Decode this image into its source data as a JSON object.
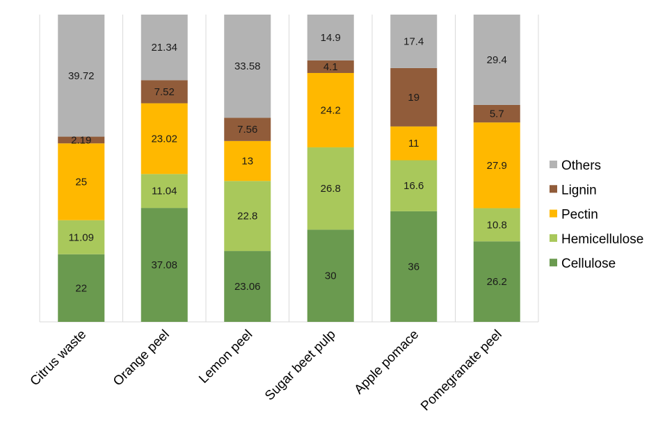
{
  "chart_data": {
    "type": "bar",
    "stacked": true,
    "title": "",
    "xlabel": "",
    "ylabel": "",
    "ylim": [
      0,
      100
    ],
    "grid": "vertical-separators",
    "legend_position": "right",
    "categories": [
      "Citrus waste",
      "Orange peel",
      "Lemon peel",
      "Sugar beet pulp",
      "Apple pomace",
      "Pomegranate peel"
    ],
    "series": [
      {
        "name": "Cellulose",
        "color": "#6a9a4f",
        "values": [
          22,
          37.08,
          23.06,
          30,
          36,
          26.2
        ],
        "labels": [
          "22",
          "37.08",
          "23.06",
          "30",
          "36",
          "26.2"
        ]
      },
      {
        "name": "Hemicellulose",
        "color": "#a9c85b",
        "values": [
          11.09,
          11.04,
          22.8,
          26.8,
          16.6,
          10.8
        ],
        "labels": [
          "11.09",
          "11.04",
          "22.8",
          "26.8",
          "16.6",
          "10.8"
        ]
      },
      {
        "name": "Pectin",
        "color": "#ffb800",
        "values": [
          25,
          23.02,
          13,
          24.2,
          11,
          27.9
        ],
        "labels": [
          "25",
          "23.02",
          "13",
          "24.2",
          "11",
          "27.9"
        ]
      },
      {
        "name": "Lignin",
        "color": "#915c3a",
        "values": [
          2.19,
          7.52,
          7.56,
          4.1,
          19,
          5.7
        ],
        "labels": [
          "2.19",
          "7.52",
          "7.56",
          "4.1",
          "19",
          "5.7"
        ]
      },
      {
        "name": "Others",
        "color": "#b3b3b3",
        "values": [
          39.72,
          21.34,
          33.58,
          14.9,
          17.4,
          29.4
        ],
        "labels": [
          "39.72",
          "21.34",
          "33.58",
          "14.9",
          "17.4",
          "29.4"
        ]
      }
    ],
    "legend_order": [
      "Others",
      "Lignin",
      "Pectin",
      "Hemicellulose",
      "Cellulose"
    ]
  }
}
